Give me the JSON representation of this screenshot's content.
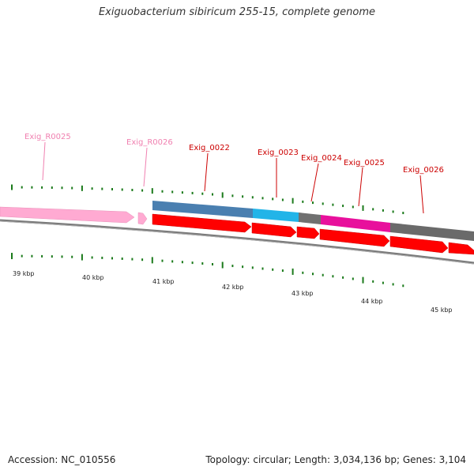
{
  "title": "Exiguobacterium sibiricum 255-15, complete genome",
  "footer": {
    "accession": "Accession: NC_010556",
    "summary": "Topology: circular; Length: 3,034,136 bp; Genes: 3,104"
  },
  "colors": {
    "rna_label": "#f080b0",
    "gene_label": "#cc0000",
    "cds_arrow": "#ff0000",
    "rna_arrow": "#ffaad2",
    "tick": "#1a7a1a",
    "backbone": "#777777"
  },
  "features": [
    {
      "name": "Exig_R0025",
      "kind": "rna"
    },
    {
      "name": "Exig_R0026",
      "kind": "rna"
    },
    {
      "name": "Exig_0022",
      "kind": "gene"
    },
    {
      "name": "Exig_0023",
      "kind": "gene"
    },
    {
      "name": "Exig_0024",
      "kind": "gene"
    },
    {
      "name": "Exig_0025",
      "kind": "gene"
    },
    {
      "name": "Exig_0026",
      "kind": "gene"
    }
  ],
  "scale_labels": [
    "39 kbp",
    "40 kbp",
    "41 kbp",
    "42 kbp",
    "43 kbp",
    "44 kbp",
    "45 kbp"
  ],
  "function_bands": [
    {
      "name": "band-steelblue",
      "color": "#4a7fb0"
    },
    {
      "name": "band-skyblue",
      "color": "#22b4e8"
    },
    {
      "name": "band-gray",
      "color": "#707070"
    },
    {
      "name": "band-magenta",
      "color": "#e8109c"
    },
    {
      "name": "band-darkgray",
      "color": "#6a6a6a"
    }
  ]
}
